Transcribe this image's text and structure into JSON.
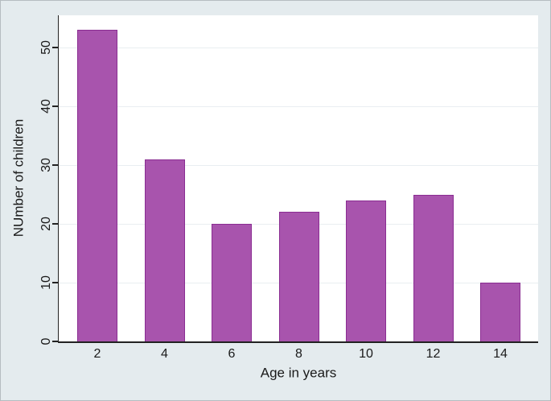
{
  "chart_data": {
    "type": "bar",
    "categories": [
      "2",
      "4",
      "6",
      "8",
      "10",
      "12",
      "14"
    ],
    "values": [
      53,
      31,
      20,
      22,
      24,
      25,
      10
    ],
    "title": "",
    "xlabel": "Age in years",
    "ylabel": "NUmber of children",
    "yticks": [
      0,
      10,
      20,
      30,
      40,
      50
    ],
    "ylim": [
      0,
      55.5
    ],
    "grid": true,
    "legend": "none",
    "colors": {
      "bar_fill": "#a854ad",
      "bar_border": "#8a2d92",
      "figure_background": "#e4ebee",
      "plot_background": "#ffffff",
      "gridline": "#e9eef1",
      "axis": "#222222",
      "text": "#1a1a1a"
    }
  }
}
